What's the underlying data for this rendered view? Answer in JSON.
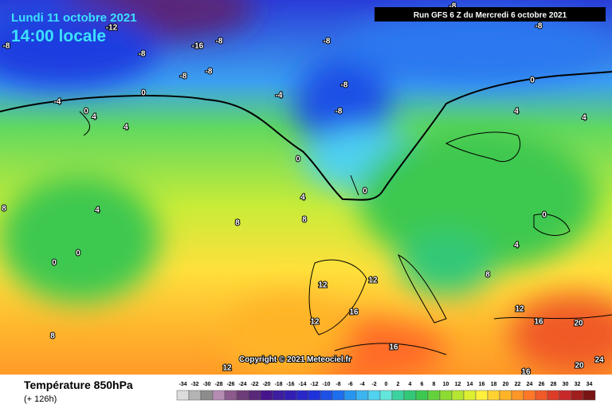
{
  "header": {
    "date": "Lundi 11 octobre 2021",
    "time": "14:00 locale",
    "run": "Run GFS 6 Z du Mercredi 6 octobre 2021"
  },
  "map": {
    "contour_labels": [
      -12,
      -16,
      -8,
      -8,
      -8,
      -8,
      -8,
      -8,
      -8,
      -8,
      -8,
      -8,
      -4,
      -4,
      0,
      0,
      4,
      4,
      0,
      4,
      0,
      4,
      0,
      0,
      8,
      8,
      8,
      4,
      0,
      4,
      0,
      4,
      8,
      12,
      12,
      12,
      16,
      16,
      20,
      24,
      20,
      16,
      12,
      16,
      8,
      12
    ]
  },
  "copyright": "Copyright © 2021 Meteociel.fr",
  "footer": {
    "title": "Température 850hPa",
    "lead": "(+ 126h)"
  },
  "legend": {
    "ticks": [
      -34,
      -32,
      -30,
      -28,
      -26,
      -24,
      -22,
      -20,
      -18,
      -16,
      -14,
      -12,
      -10,
      -8,
      -6,
      -4,
      -2,
      0,
      2,
      4,
      6,
      8,
      10,
      12,
      14,
      16,
      18,
      20,
      22,
      24,
      26,
      28,
      30,
      32,
      34
    ],
    "colors": [
      "#dcdcdc",
      "#b4b4b4",
      "#8c8c8c",
      "#b48cb4",
      "#8c5a8c",
      "#6e3c78",
      "#5a2878",
      "#46148c",
      "#3c1ea0",
      "#321eb4",
      "#2828c8",
      "#1e32dc",
      "#1e50e6",
      "#1e6ef0",
      "#2896f0",
      "#3cb4f0",
      "#50d2f0",
      "#64e6dc",
      "#3cd2a0",
      "#32c878",
      "#3cc850",
      "#64d23c",
      "#8cdc32",
      "#b4e632",
      "#dcf032",
      "#fff03c",
      "#ffd232",
      "#ffb428",
      "#ff9628",
      "#ff7828",
      "#f05a28",
      "#dc3c28",
      "#c82828",
      "#a01e1e",
      "#781414"
    ]
  }
}
